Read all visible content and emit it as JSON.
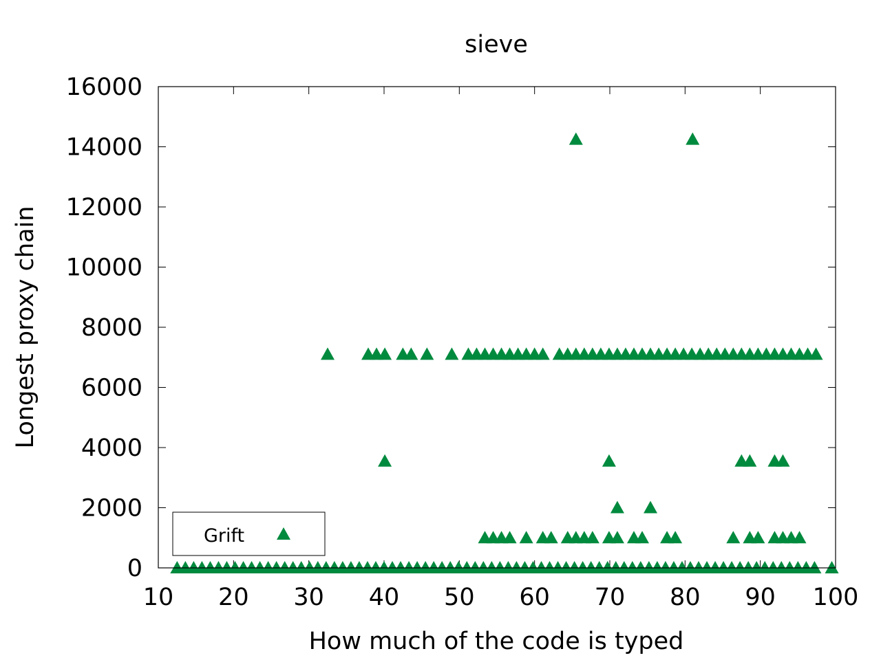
{
  "chart_data": {
    "type": "scatter",
    "title": "sieve",
    "xlabel": "How much of the code is typed",
    "ylabel": "Longest proxy chain",
    "xlim": [
      10,
      100
    ],
    "ylim": [
      0,
      16000
    ],
    "xticks": [
      10,
      20,
      30,
      40,
      50,
      60,
      70,
      80,
      90,
      100
    ],
    "yticks": [
      0,
      2000,
      4000,
      6000,
      8000,
      10000,
      12000,
      14000,
      16000
    ],
    "grid": false,
    "legend_position": "bottom-left",
    "marker": "triangle",
    "color": "#008a3e",
    "series": [
      {
        "name": "Grift",
        "points": [
          [
            12.5,
            0
          ],
          [
            13.6,
            0
          ],
          [
            14.7,
            0
          ],
          [
            15.8,
            0
          ],
          [
            16.9,
            0
          ],
          [
            18.0,
            0
          ],
          [
            19.1,
            0
          ],
          [
            20.2,
            0
          ],
          [
            21.3,
            0
          ],
          [
            22.4,
            0
          ],
          [
            23.5,
            0
          ],
          [
            24.6,
            0
          ],
          [
            25.7,
            0
          ],
          [
            26.8,
            0
          ],
          [
            27.9,
            0
          ],
          [
            29.0,
            0
          ],
          [
            30.1,
            0
          ],
          [
            31.2,
            0
          ],
          [
            32.3,
            0
          ],
          [
            33.4,
            0
          ],
          [
            34.5,
            0
          ],
          [
            35.6,
            0
          ],
          [
            36.7,
            0
          ],
          [
            37.8,
            0
          ],
          [
            38.9,
            0
          ],
          [
            40.0,
            0
          ],
          [
            41.1,
            0
          ],
          [
            42.2,
            0
          ],
          [
            43.3,
            0
          ],
          [
            44.4,
            0
          ],
          [
            45.5,
            0
          ],
          [
            46.6,
            0
          ],
          [
            47.7,
            0
          ],
          [
            48.8,
            0
          ],
          [
            49.9,
            0
          ],
          [
            51.0,
            0
          ],
          [
            52.1,
            0
          ],
          [
            53.2,
            0
          ],
          [
            54.3,
            0
          ],
          [
            55.4,
            0
          ],
          [
            56.5,
            0
          ],
          [
            57.6,
            0
          ],
          [
            58.7,
            0
          ],
          [
            59.8,
            0
          ],
          [
            60.9,
            0
          ],
          [
            62.0,
            0
          ],
          [
            63.1,
            0
          ],
          [
            64.2,
            0
          ],
          [
            65.3,
            0
          ],
          [
            66.4,
            0
          ],
          [
            67.5,
            0
          ],
          [
            68.6,
            0
          ],
          [
            69.7,
            0
          ],
          [
            70.8,
            0
          ],
          [
            71.9,
            0
          ],
          [
            73.0,
            0
          ],
          [
            74.1,
            0
          ],
          [
            75.2,
            0
          ],
          [
            76.3,
            0
          ],
          [
            77.4,
            0
          ],
          [
            78.5,
            0
          ],
          [
            79.6,
            0
          ],
          [
            80.7,
            0
          ],
          [
            81.8,
            0
          ],
          [
            82.9,
            0
          ],
          [
            84.0,
            0
          ],
          [
            85.1,
            0
          ],
          [
            86.2,
            0
          ],
          [
            87.3,
            0
          ],
          [
            88.4,
            0
          ],
          [
            89.5,
            0
          ],
          [
            90.6,
            0
          ],
          [
            91.7,
            0
          ],
          [
            92.8,
            0
          ],
          [
            93.9,
            0
          ],
          [
            95.0,
            0
          ],
          [
            96.1,
            0
          ],
          [
            97.2,
            0
          ],
          [
            99.5,
            0
          ],
          [
            32.5,
            7100
          ],
          [
            37.9,
            7100
          ],
          [
            39.0,
            7100
          ],
          [
            40.1,
            7100
          ],
          [
            42.5,
            7100
          ],
          [
            43.6,
            7100
          ],
          [
            45.7,
            7100
          ],
          [
            49.0,
            7100
          ],
          [
            51.2,
            7100
          ],
          [
            52.3,
            7100
          ],
          [
            53.4,
            7100
          ],
          [
            54.5,
            7100
          ],
          [
            55.6,
            7100
          ],
          [
            56.7,
            7100
          ],
          [
            57.8,
            7100
          ],
          [
            58.9,
            7100
          ],
          [
            60.0,
            7100
          ],
          [
            61.1,
            7100
          ],
          [
            63.3,
            7100
          ],
          [
            64.4,
            7100
          ],
          [
            65.5,
            7100
          ],
          [
            66.6,
            7100
          ],
          [
            67.7,
            7100
          ],
          [
            68.8,
            7100
          ],
          [
            69.9,
            7100
          ],
          [
            71.0,
            7100
          ],
          [
            72.1,
            7100
          ],
          [
            73.2,
            7100
          ],
          [
            74.3,
            7100
          ],
          [
            75.4,
            7100
          ],
          [
            76.5,
            7100
          ],
          [
            77.6,
            7100
          ],
          [
            78.7,
            7100
          ],
          [
            79.8,
            7100
          ],
          [
            80.9,
            7100
          ],
          [
            82.0,
            7100
          ],
          [
            83.1,
            7100
          ],
          [
            84.2,
            7100
          ],
          [
            85.3,
            7100
          ],
          [
            86.4,
            7100
          ],
          [
            87.5,
            7100
          ],
          [
            88.6,
            7100
          ],
          [
            89.7,
            7100
          ],
          [
            90.8,
            7100
          ],
          [
            91.9,
            7100
          ],
          [
            93.0,
            7100
          ],
          [
            94.1,
            7100
          ],
          [
            95.2,
            7100
          ],
          [
            96.3,
            7100
          ],
          [
            97.4,
            7100
          ],
          [
            40.1,
            3550
          ],
          [
            69.9,
            3550
          ],
          [
            87.5,
            3550
          ],
          [
            88.6,
            3550
          ],
          [
            91.9,
            3550
          ],
          [
            93.0,
            3550
          ],
          [
            71.0,
            2000
          ],
          [
            75.4,
            2000
          ],
          [
            53.4,
            1000
          ],
          [
            54.5,
            1000
          ],
          [
            55.6,
            1000
          ],
          [
            56.7,
            1000
          ],
          [
            58.9,
            1000
          ],
          [
            61.1,
            1000
          ],
          [
            62.2,
            1000
          ],
          [
            64.4,
            1000
          ],
          [
            65.5,
            1000
          ],
          [
            66.6,
            1000
          ],
          [
            67.7,
            1000
          ],
          [
            69.9,
            1000
          ],
          [
            71.0,
            1000
          ],
          [
            73.2,
            1000
          ],
          [
            74.3,
            1000
          ],
          [
            77.6,
            1000
          ],
          [
            78.7,
            1000
          ],
          [
            86.4,
            1000
          ],
          [
            88.6,
            1000
          ],
          [
            89.7,
            1000
          ],
          [
            91.9,
            1000
          ],
          [
            93.0,
            1000
          ],
          [
            94.1,
            1000
          ],
          [
            95.2,
            1000
          ],
          [
            65.5,
            14250
          ],
          [
            81.0,
            14250
          ]
        ]
      }
    ]
  }
}
